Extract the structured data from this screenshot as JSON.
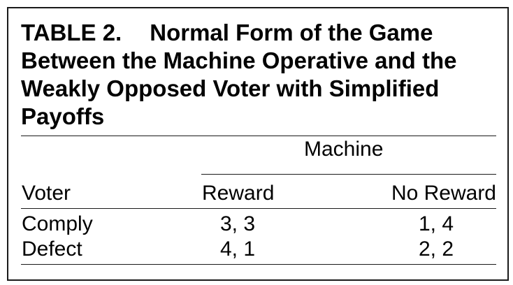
{
  "table": {
    "label": "TABLE 2.",
    "title": "Normal Form of the Game Between the Machine Operative and the Weakly Opposed Voter with Simplified Payoffs",
    "spanner": "Machine",
    "row_header": "Voter",
    "columns": [
      "Reward",
      "No Reward"
    ],
    "rows": [
      {
        "label": "Comply",
        "values": [
          "3, 3",
          "1, 4"
        ]
      },
      {
        "label": "Defect",
        "values": [
          "4, 1",
          "2, 2"
        ]
      }
    ]
  }
}
